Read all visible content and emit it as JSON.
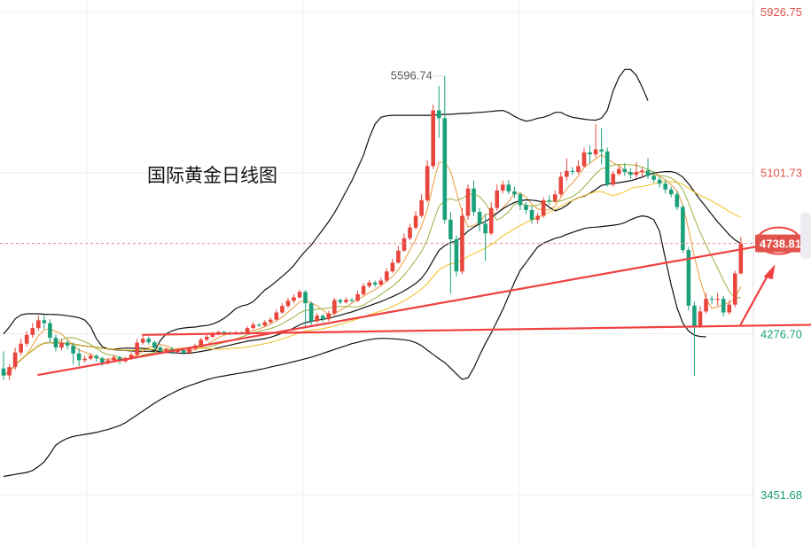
{
  "chart_data": {
    "type": "candlestick",
    "title": "国际黄金日线图",
    "y_ticks": [
      {
        "value": 5926.75,
        "label": "5926.75",
        "color": "#e0524a"
      },
      {
        "value": 5101.73,
        "label": "5101.73",
        "color": "#e0524a"
      },
      {
        "value": 4276.7,
        "label": "4276.70",
        "color": "#1aa07a"
      },
      {
        "value": 3451.68,
        "label": "3451.68",
        "color": "#1aa07a"
      }
    ],
    "ylim": [
      3451.68,
      5926.75
    ],
    "current_price": {
      "value": 4738.81,
      "label": "4738.81",
      "color": "#e0524a"
    },
    "high_annotation": {
      "value": 5596.74,
      "label": "5596.74"
    },
    "colors": {
      "up": "#e8453c",
      "down": "#1aa07a",
      "trendline": "#f04040",
      "band": "#111111",
      "ma_short": "#e89a3c",
      "ma_mid": "#9ab040",
      "ma_long": "#f0c020"
    },
    "candles": [
      [
        4098,
        4062,
        4185,
        4040
      ],
      [
        4062,
        4105,
        4120,
        4040
      ],
      [
        4105,
        4180,
        4205,
        4090
      ],
      [
        4180,
        4225,
        4250,
        4165
      ],
      [
        4225,
        4270,
        4290,
        4210
      ],
      [
        4270,
        4305,
        4330,
        4255
      ],
      [
        4305,
        4345,
        4370,
        4290
      ],
      [
        4345,
        4330,
        4372,
        4300
      ],
      [
        4330,
        4255,
        4350,
        4230
      ],
      [
        4255,
        4205,
        4272,
        4185
      ],
      [
        4205,
        4230,
        4250,
        4190
      ],
      [
        4230,
        4215,
        4245,
        4195
      ],
      [
        4215,
        4175,
        4230,
        4120
      ],
      [
        4175,
        4140,
        4200,
        4110
      ],
      [
        4140,
        4148,
        4165,
        4128
      ],
      [
        4148,
        4162,
        4178,
        4140
      ],
      [
        4162,
        4150,
        4172,
        4132
      ],
      [
        4150,
        4128,
        4160,
        4112
      ],
      [
        4128,
        4140,
        4152,
        4118
      ],
      [
        4140,
        4155,
        4168,
        4132
      ],
      [
        4155,
        4135,
        4162,
        4120
      ],
      [
        4135,
        4150,
        4158,
        4128
      ],
      [
        4150,
        4168,
        4180,
        4140
      ],
      [
        4168,
        4230,
        4250,
        4160
      ],
      [
        4230,
        4250,
        4270,
        4220
      ],
      [
        4250,
        4232,
        4262,
        4220
      ],
      [
        4232,
        4205,
        4240,
        4190
      ],
      [
        4205,
        4188,
        4215,
        4172
      ],
      [
        4188,
        4198,
        4205,
        4180
      ],
      [
        4198,
        4182,
        4208,
        4172
      ],
      [
        4182,
        4192,
        4200,
        4175
      ],
      [
        4192,
        4178,
        4200,
        4170
      ],
      [
        4178,
        4200,
        4210,
        4170
      ],
      [
        4200,
        4215,
        4225,
        4192
      ],
      [
        4215,
        4245,
        4255,
        4208
      ],
      [
        4245,
        4260,
        4270,
        4238
      ],
      [
        4260,
        4275,
        4285,
        4255
      ],
      [
        4275,
        4285,
        4290,
        4268
      ],
      [
        4285,
        4280,
        4292,
        4270
      ],
      [
        4280,
        4275,
        4288,
        4268
      ],
      [
        4275,
        4282,
        4290,
        4270
      ],
      [
        4282,
        4278,
        4288,
        4272
      ],
      [
        4278,
        4305,
        4315,
        4272
      ],
      [
        4305,
        4322,
        4335,
        4298
      ],
      [
        4322,
        4318,
        4330,
        4310
      ],
      [
        4318,
        4335,
        4345,
        4310
      ],
      [
        4335,
        4348,
        4358,
        4328
      ],
      [
        4348,
        4385,
        4398,
        4340
      ],
      [
        4385,
        4418,
        4432,
        4378
      ],
      [
        4418,
        4445,
        4460,
        4408
      ],
      [
        4445,
        4462,
        4478,
        4432
      ],
      [
        4462,
        4490,
        4502,
        4455
      ],
      [
        4490,
        4432,
        4500,
        4305
      ],
      [
        4432,
        4340,
        4440,
        4320
      ],
      [
        4340,
        4368,
        4382,
        4332
      ],
      [
        4368,
        4350,
        4376,
        4335
      ],
      [
        4350,
        4380,
        4392,
        4340
      ],
      [
        4380,
        4448,
        4460,
        4372
      ],
      [
        4448,
        4438,
        4458,
        4428
      ],
      [
        4438,
        4450,
        4462,
        4430
      ],
      [
        4450,
        4445,
        4458,
        4435
      ],
      [
        4445,
        4478,
        4495,
        4438
      ],
      [
        4478,
        4520,
        4535,
        4470
      ],
      [
        4520,
        4538,
        4550,
        4510
      ],
      [
        4538,
        4528,
        4548,
        4515
      ],
      [
        4528,
        4548,
        4562,
        4520
      ],
      [
        4548,
        4595,
        4612,
        4540
      ],
      [
        4595,
        4640,
        4660,
        4588
      ],
      [
        4640,
        4702,
        4725,
        4635
      ],
      [
        4702,
        4765,
        4790,
        4695
      ],
      [
        4765,
        4820,
        4840,
        4755
      ],
      [
        4820,
        4880,
        4905,
        4810
      ],
      [
        4880,
        4960,
        4990,
        4870
      ],
      [
        4960,
        5135,
        5165,
        4950
      ],
      [
        5135,
        5420,
        5450,
        5120
      ],
      [
        5420,
        5380,
        5545,
        5280
      ],
      [
        5380,
        4860,
        5596.74,
        4840
      ],
      [
        4860,
        4760,
        4900,
        4480
      ],
      [
        4760,
        4595,
        4780,
        4570
      ],
      [
        4595,
        4880,
        4920,
        4580
      ],
      [
        4880,
        5020,
        5040,
        4860
      ],
      [
        5020,
        4900,
        5060,
        4880
      ],
      [
        4900,
        4840,
        4920,
        4800
      ],
      [
        4840,
        4790,
        4890,
        4650
      ],
      [
        4790,
        4920,
        4950,
        4780
      ],
      [
        4920,
        5010,
        5040,
        4905
      ],
      [
        5010,
        5040,
        5060,
        4995
      ],
      [
        5040,
        5005,
        5062,
        4990
      ],
      [
        5005,
        4990,
        5030,
        4970
      ],
      [
        4990,
        4935,
        5000,
        4910
      ],
      [
        4935,
        4910,
        4950,
        4890
      ],
      [
        4910,
        4860,
        4930,
        4840
      ],
      [
        4860,
        4880,
        4895,
        4840
      ],
      [
        4880,
        4960,
        4975,
        4870
      ],
      [
        4960,
        4955,
        4985,
        4935
      ],
      [
        4955,
        4990,
        5010,
        4945
      ],
      [
        4990,
        5080,
        5105,
        4980
      ],
      [
        5080,
        5110,
        5175,
        5060
      ],
      [
        5110,
        5105,
        5130,
        5090
      ],
      [
        5105,
        5135,
        5165,
        5095
      ],
      [
        5135,
        5205,
        5230,
        5125
      ],
      [
        5205,
        5195,
        5240,
        5150
      ],
      [
        5195,
        5220,
        5350,
        5180
      ],
      [
        5220,
        5210,
        5330,
        5145
      ],
      [
        5210,
        5040,
        5230,
        5030
      ],
      [
        5040,
        5095,
        5110,
        5030
      ],
      [
        5095,
        5120,
        5140,
        5085
      ],
      [
        5120,
        5105,
        5150,
        5085
      ],
      [
        5105,
        5090,
        5125,
        5070
      ],
      [
        5090,
        5105,
        5155,
        5075
      ],
      [
        5105,
        5112,
        5130,
        5080
      ],
      [
        5112,
        5085,
        5175,
        5070
      ],
      [
        5085,
        5065,
        5110,
        5050
      ],
      [
        5065,
        5045,
        5080,
        5025
      ],
      [
        5045,
        5015,
        5065,
        4995
      ],
      [
        5015,
        4990,
        5030,
        4975
      ],
      [
        4990,
        4925,
        5005,
        4910
      ],
      [
        4925,
        4705,
        4935,
        4690
      ],
      [
        4705,
        4420,
        4720,
        4395
      ],
      [
        4420,
        4315,
        4440,
        4060
      ],
      [
        4315,
        4390,
        4418,
        4305
      ],
      [
        4390,
        4455,
        4485,
        4380
      ],
      [
        4455,
        4450,
        4470,
        4430
      ],
      [
        4450,
        4455,
        4485,
        4420
      ],
      [
        4455,
        4385,
        4470,
        4365
      ],
      [
        4385,
        4425,
        4448,
        4375
      ],
      [
        4425,
        4585,
        4598,
        4412
      ],
      [
        4585,
        4738.81,
        4772,
        4580
      ]
    ],
    "upper_band": [
      4275,
      4310,
      4352,
      4372,
      4378,
      4378,
      4378,
      4376,
      4375,
      4374,
      4372,
      4368,
      4364,
      4358,
      4346,
      4312,
      4250,
      4210,
      4198,
      4194,
      4192,
      4190,
      4188,
      4186,
      4186,
      4186,
      4186,
      4240,
      4275,
      4290,
      4300,
      4305,
      4308,
      4310,
      4315,
      4318,
      4325,
      4338,
      4355,
      4378,
      4405,
      4418,
      4425,
      4440,
      4470,
      4500,
      4520,
      4545,
      4570,
      4595,
      4625,
      4665,
      4700,
      4730,
      4770,
      4810,
      4850,
      4895,
      4948,
      5005,
      5060,
      5125,
      5190,
      5280,
      5350,
      5385,
      5392,
      5395,
      5395,
      5395,
      5395,
      5395,
      5395,
      5395,
      5395,
      5398,
      5400,
      5400,
      5402,
      5405,
      5405,
      5408,
      5410,
      5412,
      5415,
      5418,
      5420,
      5408,
      5390,
      5375,
      5365,
      5370,
      5380,
      5385,
      5395,
      5410,
      5410,
      5395,
      5385,
      5380,
      5375,
      5372,
      5370,
      5380,
      5420,
      5520,
      5590,
      5630,
      5630,
      5600,
      5540,
      5470
    ],
    "lower_band": [
      3545,
      3550,
      3555,
      3560,
      3565,
      3575,
      3595,
      3620,
      3660,
      3705,
      3725,
      3740,
      3750,
      3755,
      3760,
      3765,
      3770,
      3778,
      3785,
      3795,
      3805,
      3820,
      3840,
      3860,
      3880,
      3900,
      3920,
      3938,
      3955,
      3970,
      3985,
      3998,
      4010,
      4020,
      4030,
      4040,
      4048,
      4055,
      4060,
      4065,
      4070,
      4075,
      4080,
      4085,
      4092,
      4098,
      4105,
      4112,
      4118,
      4125,
      4133,
      4140,
      4148,
      4155,
      4165,
      4175,
      4185,
      4195,
      4205,
      4215,
      4225,
      4232,
      4240,
      4245,
      4250,
      4252,
      4252,
      4250,
      4248,
      4245,
      4240,
      4230,
      4215,
      4192,
      4170,
      4148,
      4128,
      4100,
      4070,
      4042,
      4050,
      4100,
      4165,
      4225,
      4280,
      4340,
      4400,
      4470,
      4540,
      4600,
      4640,
      4680,
      4720,
      4740,
      4752,
      4765,
      4772,
      4785,
      4795,
      4805,
      4815,
      4820,
      4822,
      4825,
      4828,
      4832,
      4836,
      4845,
      4860,
      4872,
      4880,
      4875,
      4860,
      4802,
      4660,
      4525,
      4410,
      4330,
      4290,
      4268,
      4262,
      4260
    ],
    "trendlines": [
      {
        "from": [
          6,
          4065
        ],
        "to": [
          134,
          4745
        ]
      },
      {
        "from": [
          24,
          4270
        ],
        "to": [
          140,
          4322
        ]
      },
      {
        "from": [
          127,
          4325
        ],
        "to": [
          132,
          4595
        ]
      }
    ]
  }
}
